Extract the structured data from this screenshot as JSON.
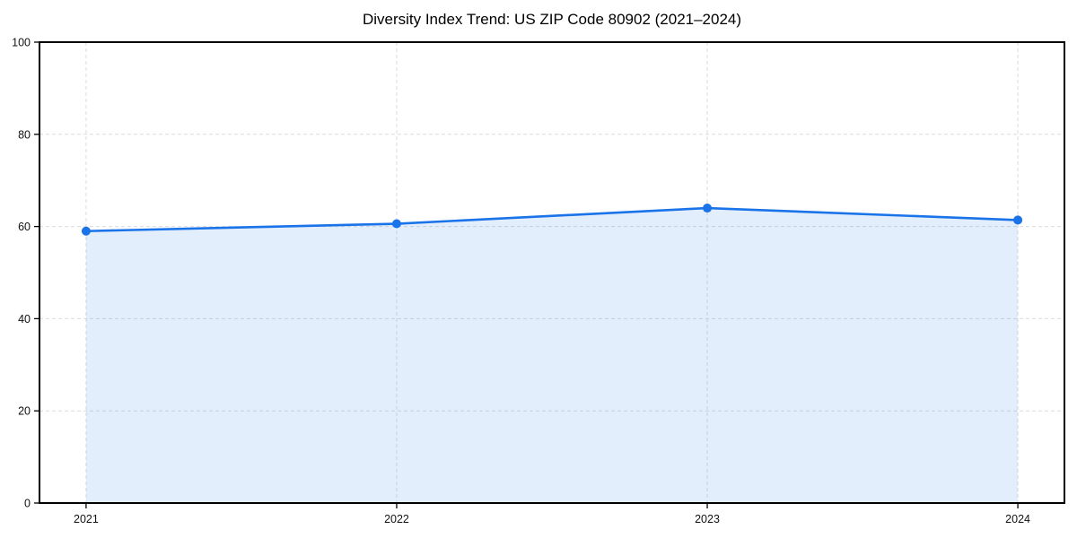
{
  "chart": {
    "title": "Diversity Index Trend: US ZIP Code 80902 (2021–2024)"
  },
  "chart_data": {
    "type": "area",
    "title": "Diversity Index Trend: US ZIP Code 80902 (2021–2024)",
    "categories": [
      "2021",
      "2022",
      "2023",
      "2024"
    ],
    "x": [
      2021,
      2022,
      2023,
      2024
    ],
    "values": [
      59.0,
      60.6,
      64.0,
      61.4
    ],
    "series_name": "Diversity Index",
    "xlabel": "",
    "ylabel": "",
    "ylim": [
      0,
      100
    ],
    "y_ticks": [
      0,
      20,
      40,
      60,
      80,
      100
    ],
    "grid": true,
    "grid_style": "dashed",
    "legend_position": "none",
    "colors": {
      "line": "#1a73e8",
      "marker": "#1a73e8",
      "fill": "#e3eefc",
      "axis": "#000000",
      "grid": "#dcdcdc",
      "background": "#ffffff",
      "tick_label": "#111111"
    }
  }
}
